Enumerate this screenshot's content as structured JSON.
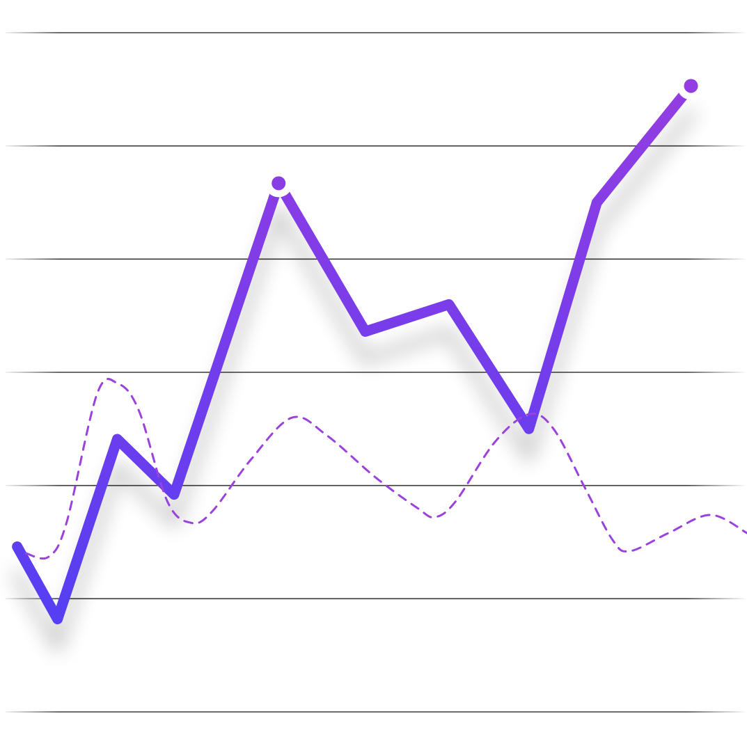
{
  "chart_data": {
    "type": "line",
    "xlim": [
      0,
      100
    ],
    "ylim": [
      0,
      6
    ],
    "yticks": [
      0,
      1,
      2,
      3,
      4,
      5,
      6
    ],
    "grid": true,
    "grid_color": "#3a3a3a",
    "series": [
      {
        "style": "solid",
        "gradient": [
          "#4b3ff6",
          "#9a3de0"
        ],
        "markers_at": [
          4,
          9
        ],
        "x": [
          2.3,
          7.7,
          15.7,
          23.3,
          37.3,
          48.9,
          60.1,
          70.8,
          79.9,
          92.5
        ],
        "values": [
          1.46,
          0.82,
          2.41,
          1.92,
          4.67,
          3.36,
          3.6,
          2.5,
          4.5,
          5.53
        ]
      },
      {
        "style": "dashed",
        "color": "#9b42dc",
        "x": [
          3.5,
          6.5,
          8.9,
          13.0,
          15.8,
          18.6,
          22.4,
          25.6,
          28.4,
          33.6,
          39.1,
          43.8,
          50.3,
          55.9,
          58.2,
          61.0,
          66.2,
          70.8,
          74.1,
          78.3,
          82.0,
          84.3,
          89.5,
          95.1,
          100
        ],
        "values": [
          1.4,
          1.37,
          1.67,
          2.81,
          2.9,
          2.66,
          1.86,
          1.67,
          1.77,
          2.23,
          2.6,
          2.44,
          2.07,
          1.8,
          1.72,
          1.86,
          2.38,
          2.63,
          2.5,
          1.98,
          1.52,
          1.42,
          1.58,
          1.74,
          1.58
        ]
      }
    ]
  }
}
